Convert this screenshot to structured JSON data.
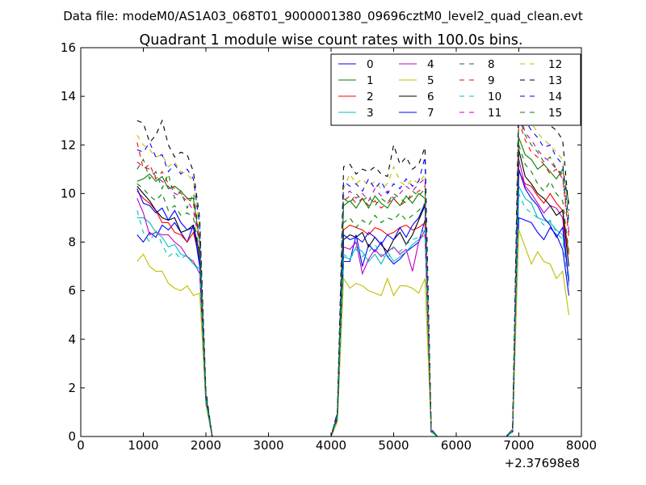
{
  "figure": {
    "suptitle": "Data file: modeM0/AS1A03_068T01_9000001380_09696cztM0_level2_quad_clean.evt",
    "x_offset_label": "+2.37698e8"
  },
  "chart_data": {
    "type": "line",
    "title": "Quadrant 1 module wise count rates with 100.0s bins.",
    "xlabel": "",
    "ylabel": "",
    "xlim": [
      0,
      8000
    ],
    "ylim": [
      0,
      16
    ],
    "x_offset": "+2.37698e8",
    "xticks": [
      0,
      1000,
      2000,
      3000,
      4000,
      5000,
      6000,
      7000,
      8000
    ],
    "yticks": [
      0,
      2,
      4,
      6,
      8,
      10,
      12,
      14,
      16
    ],
    "grid": false,
    "legend": {
      "location": "top-right",
      "columns": 4
    },
    "x": [
      900,
      1000,
      1100,
      1200,
      1300,
      1400,
      1500,
      1600,
      1700,
      1800,
      1900,
      2000,
      2100,
      2200,
      2300,
      2400,
      2500,
      2600,
      2700,
      2800,
      2900,
      3000,
      3100,
      3200,
      3300,
      3400,
      3500,
      3600,
      3700,
      3800,
      3900,
      4000,
      4100,
      4200,
      4300,
      4400,
      4500,
      4600,
      4700,
      4800,
      4900,
      5000,
      5100,
      5200,
      5300,
      5400,
      5500,
      5600,
      5700,
      5800,
      5900,
      6000,
      6100,
      6200,
      6300,
      6400,
      6500,
      6600,
      6700,
      6800,
      6900,
      7000,
      7100,
      7200,
      7300,
      7400,
      7500,
      7600,
      7700,
      7800
    ],
    "series": [
      {
        "name": "0",
        "color": "#0000ff",
        "dash": "solid",
        "values": [
          8.3,
          8.0,
          8.4,
          8.2,
          8.7,
          8.5,
          8.8,
          8.4,
          8.0,
          8.7,
          7.0,
          1.5,
          0,
          0,
          0,
          0,
          0,
          0,
          0,
          0,
          0,
          0,
          0,
          0,
          0,
          0,
          0,
          0,
          0,
          0,
          0,
          0,
          0.8,
          7.2,
          7.2,
          8.3,
          7.0,
          7.9,
          7.6,
          8.0,
          7.4,
          7.1,
          7.3,
          7.6,
          7.8,
          8.0,
          8.9,
          0.2,
          0,
          0,
          0,
          0,
          0,
          0,
          0,
          0,
          0,
          0,
          0,
          0,
          0.2,
          9.0,
          8.9,
          8.8,
          8.4,
          8.1,
          8.6,
          8.3,
          7.7,
          5.8
        ]
      },
      {
        "name": "1",
        "color": "#008000",
        "dash": "solid",
        "values": [
          10.5,
          10.6,
          10.8,
          10.5,
          10.7,
          10.2,
          10.3,
          10.1,
          9.8,
          9.8,
          8.0,
          1.7,
          0,
          0,
          0,
          0,
          0,
          0,
          0,
          0,
          0,
          0,
          0,
          0,
          0,
          0,
          0,
          0,
          0,
          0,
          0,
          0,
          0.9,
          9.5,
          9.7,
          9.4,
          9.8,
          9.4,
          9.9,
          9.6,
          9.4,
          9.8,
          9.5,
          9.9,
          9.6,
          10.0,
          9.8,
          0.3,
          0,
          0,
          0,
          0,
          0,
          0,
          0,
          0,
          0,
          0,
          0,
          0,
          0.3,
          12.3,
          11.6,
          11.4,
          11.0,
          11.2,
          10.9,
          10.6,
          11.0,
          9.6
        ]
      },
      {
        "name": "2",
        "color": "#ff0000",
        "dash": "solid",
        "values": [
          10.1,
          9.8,
          9.6,
          9.3,
          8.8,
          8.8,
          8.4,
          8.3,
          8.0,
          8.4,
          7.3,
          1.6,
          0,
          0,
          0,
          0,
          0,
          0,
          0,
          0,
          0,
          0,
          0,
          0,
          0,
          0,
          0,
          0,
          0,
          0,
          0,
          0,
          0.8,
          8.5,
          8.7,
          8.6,
          8.5,
          8.3,
          8.6,
          8.5,
          8.3,
          8.4,
          8.6,
          8.7,
          8.5,
          8.6,
          8.8,
          0.2,
          0,
          0,
          0,
          0,
          0,
          0,
          0,
          0,
          0,
          0,
          0,
          0,
          0.2,
          10.9,
          10.4,
          10.3,
          9.9,
          9.6,
          10.0,
          9.6,
          9.3,
          7.5
        ]
      },
      {
        "name": "3",
        "color": "#00bfbf",
        "dash": "solid",
        "values": [
          9.0,
          9.0,
          8.8,
          8.4,
          8.2,
          7.8,
          7.9,
          7.5,
          7.4,
          7.1,
          6.9,
          1.5,
          0,
          0,
          0,
          0,
          0,
          0,
          0,
          0,
          0,
          0,
          0,
          0,
          0,
          0,
          0,
          0,
          0,
          0,
          0,
          0,
          0.7,
          7.4,
          7.3,
          7.8,
          7.6,
          7.2,
          7.5,
          7.1,
          7.6,
          7.2,
          7.4,
          7.6,
          7.9,
          8.1,
          8.3,
          0.2,
          0,
          0,
          0,
          0,
          0,
          0,
          0,
          0,
          0,
          0,
          0,
          0,
          0.2,
          10.3,
          9.8,
          9.6,
          9.0,
          8.9,
          8.8,
          8.5,
          8.3,
          6.5
        ]
      },
      {
        "name": "4",
        "color": "#bf00bf",
        "dash": "solid",
        "values": [
          9.8,
          9.2,
          8.3,
          8.4,
          8.3,
          8.3,
          8.0,
          7.8,
          7.4,
          7.2,
          6.7,
          1.4,
          0,
          0,
          0,
          0,
          0,
          0,
          0,
          0,
          0,
          0,
          0,
          0,
          0,
          0,
          0,
          0,
          0,
          0,
          0,
          0,
          0.7,
          7.8,
          7.7,
          8.0,
          6.7,
          7.3,
          7.7,
          7.4,
          7.6,
          7.8,
          7.5,
          7.7,
          6.8,
          8.0,
          8.5,
          0.2,
          0,
          0,
          0,
          0,
          0,
          0,
          0,
          0,
          0,
          0,
          0,
          0,
          0.2,
          11.4,
          10.3,
          10.0,
          9.6,
          9.2,
          9.5,
          9.4,
          9.0,
          6.3
        ]
      },
      {
        "name": "5",
        "color": "#bfbf00",
        "dash": "solid",
        "values": [
          7.2,
          7.5,
          7.0,
          6.8,
          6.8,
          6.3,
          6.1,
          6.0,
          6.2,
          5.8,
          5.9,
          1.3,
          0,
          0,
          0,
          0,
          0,
          0,
          0,
          0,
          0,
          0,
          0,
          0,
          0,
          0,
          0,
          0,
          0,
          0,
          0,
          0,
          0.6,
          6.5,
          6.1,
          6.3,
          6.2,
          6.0,
          5.9,
          5.8,
          6.5,
          5.8,
          6.2,
          6.2,
          6.1,
          5.9,
          6.5,
          0.2,
          0,
          0,
          0,
          0,
          0,
          0,
          0,
          0,
          0,
          0,
          0,
          0,
          0.2,
          8.5,
          7.8,
          7.1,
          7.6,
          7.2,
          7.1,
          6.5,
          6.8,
          5.0
        ]
      },
      {
        "name": "6",
        "color": "#000000",
        "dash": "solid",
        "values": [
          10.3,
          10.0,
          9.7,
          9.3,
          9.0,
          8.9,
          9.0,
          8.4,
          8.5,
          8.7,
          7.5,
          1.6,
          0,
          0,
          0,
          0,
          0,
          0,
          0,
          0,
          0,
          0,
          0,
          0,
          0,
          0,
          0,
          0,
          0,
          0,
          0,
          0,
          0.8,
          8.1,
          8.3,
          8.2,
          8.4,
          7.8,
          8.2,
          7.9,
          7.6,
          8.1,
          8.4,
          7.9,
          8.3,
          8.9,
          9.5,
          0.2,
          0,
          0,
          0,
          0,
          0,
          0,
          0,
          0,
          0,
          0,
          0,
          0,
          0.2,
          11.8,
          10.7,
          10.4,
          10.0,
          9.8,
          9.5,
          9.1,
          9.3,
          7.0
        ]
      },
      {
        "name": "7",
        "color": "#0000ff",
        "dash": "solid",
        "values": [
          10.2,
          9.6,
          9.5,
          9.2,
          9.4,
          8.9,
          9.3,
          8.8,
          8.5,
          8.6,
          7.2,
          1.5,
          0,
          0,
          0,
          0,
          0,
          0,
          0,
          0,
          0,
          0,
          0,
          0,
          0,
          0,
          0,
          0,
          0,
          0,
          0,
          0,
          0.8,
          8.3,
          8.1,
          8.2,
          8.0,
          8.4,
          8.2,
          7.9,
          8.3,
          8.1,
          8.6,
          8.2,
          8.7,
          9.0,
          9.6,
          0.2,
          0,
          0,
          0,
          0,
          0,
          0,
          0,
          0,
          0,
          0,
          0,
          0,
          0.2,
          11.0,
          10.2,
          9.8,
          9.5,
          9.0,
          8.7,
          8.2,
          8.6,
          6.4
        ]
      },
      {
        "name": "8",
        "color": "#008000",
        "dash": "dashed",
        "values": [
          10.4,
          10.2,
          9.9,
          9.7,
          10.0,
          9.3,
          9.5,
          9.1,
          9.2,
          9.0,
          7.6,
          1.6,
          0,
          0,
          0,
          0,
          0,
          0,
          0,
          0,
          0,
          0,
          0,
          0,
          0,
          0,
          0,
          0,
          0,
          0,
          0,
          0,
          0.8,
          8.8,
          9.0,
          8.6,
          8.9,
          8.7,
          9.1,
          8.8,
          9.0,
          8.9,
          9.2,
          8.9,
          9.1,
          9.3,
          9.6,
          0.2,
          0,
          0,
          0,
          0,
          0,
          0,
          0,
          0,
          0,
          0,
          0,
          0,
          0.3,
          12.0,
          11.2,
          10.9,
          10.4,
          10.1,
          10.5,
          10.0,
          9.7,
          7.6
        ]
      },
      {
        "name": "9",
        "color": "#ff0000",
        "dash": "dashed",
        "values": [
          12.1,
          11.0,
          11.2,
          10.6,
          10.9,
          10.4,
          10.2,
          10.0,
          9.8,
          9.6,
          8.0,
          1.7,
          0,
          0,
          0,
          0,
          0,
          0,
          0,
          0,
          0,
          0,
          0,
          0,
          0,
          0,
          0,
          0,
          0,
          0,
          0,
          0,
          0.9,
          9.7,
          9.9,
          9.6,
          9.8,
          9.5,
          9.7,
          9.4,
          9.6,
          9.8,
          9.5,
          9.7,
          9.9,
          10.1,
          10.3,
          0.3,
          0,
          0,
          0,
          0,
          0,
          0,
          0,
          0,
          0,
          0,
          0,
          0,
          0.3,
          13.0,
          12.2,
          11.7,
          11.5,
          11.2,
          10.8,
          11.0,
          10.6,
          8.2
        ]
      },
      {
        "name": "10",
        "color": "#00bfbf",
        "dash": "dashed",
        "values": [
          9.3,
          8.4,
          8.0,
          8.5,
          7.9,
          7.4,
          7.6,
          7.3,
          7.5,
          7.1,
          6.8,
          1.4,
          0,
          0,
          0,
          0,
          0,
          0,
          0,
          0,
          0,
          0,
          0,
          0,
          0,
          0,
          0,
          0,
          0,
          0,
          0,
          0,
          0.7,
          7.5,
          7.3,
          7.7,
          7.4,
          7.6,
          7.9,
          7.5,
          7.3,
          7.8,
          7.6,
          7.9,
          8.1,
          8.2,
          8.6,
          0.2,
          0,
          0,
          0,
          0,
          0,
          0,
          0,
          0,
          0,
          0,
          0,
          0,
          0.2,
          10.0,
          9.4,
          9.2,
          9.0,
          8.7,
          8.9,
          8.4,
          8.1,
          6.2
        ]
      },
      {
        "name": "11",
        "color": "#bf00bf",
        "dash": "dashed",
        "values": [
          11.3,
          11.1,
          11.0,
          10.7,
          10.5,
          10.3,
          10.0,
          9.9,
          9.7,
          9.3,
          7.9,
          1.7,
          0,
          0,
          0,
          0,
          0,
          0,
          0,
          0,
          0,
          0,
          0,
          0,
          0,
          0,
          0,
          0,
          0,
          0,
          0,
          0,
          0.9,
          9.9,
          10.1,
          9.8,
          10.0,
          9.7,
          10.2,
          9.9,
          10.1,
          9.8,
          10.0,
          10.3,
          10.1,
          10.4,
          10.6,
          0.3,
          0,
          0,
          0,
          0,
          0,
          0,
          0,
          0,
          0,
          0,
          0,
          0,
          0.3,
          13.4,
          12.5,
          12.2,
          11.8,
          11.5,
          11.3,
          11.0,
          10.7,
          8.4
        ]
      },
      {
        "name": "12",
        "color": "#bfbf00",
        "dash": "dashed",
        "values": [
          12.4,
          12.0,
          11.8,
          11.5,
          11.6,
          11.1,
          11.3,
          10.9,
          10.8,
          10.5,
          8.5,
          1.8,
          0,
          0,
          0,
          0,
          0,
          0,
          0,
          0,
          0,
          0,
          0,
          0,
          0,
          0,
          0,
          0,
          0,
          0,
          0,
          0,
          1.0,
          10.2,
          10.8,
          10.4,
          10.6,
          10.3,
          10.5,
          10.2,
          10.4,
          11.1,
          10.5,
          10.3,
          10.6,
          10.4,
          10.8,
          0.3,
          0,
          0,
          0,
          0,
          0,
          0,
          0,
          0,
          0,
          0,
          0,
          0,
          0.3,
          14.0,
          13.1,
          12.9,
          12.5,
          12.2,
          12.0,
          11.7,
          11.4,
          8.9
        ]
      },
      {
        "name": "13",
        "color": "#000000",
        "dash": "dashed",
        "values": [
          13.0,
          12.9,
          12.1,
          12.4,
          13.0,
          12.0,
          11.5,
          11.7,
          11.6,
          10.9,
          9.0,
          1.9,
          0,
          0,
          0,
          0,
          0,
          0,
          0,
          0,
          0,
          0,
          0,
          0,
          0,
          0,
          0,
          0,
          0,
          0,
          0,
          0,
          1.0,
          11.1,
          11.2,
          10.8,
          11.0,
          10.9,
          11.1,
          10.8,
          10.7,
          12.0,
          11.2,
          11.5,
          11.0,
          11.2,
          11.9,
          0.3,
          0,
          0,
          0,
          0,
          0,
          0,
          0,
          0,
          0,
          0,
          0,
          0,
          0.3,
          14.3,
          13.5,
          13.5,
          13.0,
          13.1,
          12.8,
          12.6,
          12.2,
          9.3
        ]
      },
      {
        "name": "14",
        "color": "#0000ff",
        "dash": "dashed",
        "values": [
          11.8,
          11.7,
          12.1,
          11.5,
          11.6,
          10.9,
          11.2,
          10.8,
          11.0,
          10.6,
          8.7,
          1.8,
          0,
          0,
          0,
          0,
          0,
          0,
          0,
          0,
          0,
          0,
          0,
          0,
          0,
          0,
          0,
          0,
          0,
          0,
          0,
          0,
          1.0,
          10.5,
          10.3,
          10.4,
          10.1,
          10.6,
          10.2,
          10.5,
          10.0,
          10.4,
          10.2,
          10.6,
          10.3,
          10.5,
          11.5,
          0.3,
          0,
          0,
          0,
          0,
          0,
          0,
          0,
          0,
          0,
          0,
          0,
          0,
          0.3,
          13.9,
          13.0,
          12.6,
          12.3,
          11.9,
          12.0,
          11.5,
          11.2,
          8.8
        ]
      },
      {
        "name": "15",
        "color": "#008000",
        "dash": "dashed",
        "values": [
          11.0,
          11.4,
          10.6,
          10.9,
          10.2,
          10.8,
          9.8,
          10.1,
          9.4,
          10.0,
          8.2,
          1.7,
          0,
          0,
          0,
          0,
          0,
          0,
          0,
          0,
          0,
          0,
          0,
          0,
          0,
          0,
          0,
          0,
          0,
          0,
          0,
          0,
          0.9,
          9.8,
          9.6,
          10.0,
          9.7,
          9.9,
          9.5,
          9.8,
          9.6,
          10.0,
          9.8,
          9.6,
          10.1,
          9.9,
          10.2,
          0.3,
          0,
          0,
          0,
          0,
          0,
          0,
          0,
          0,
          0,
          0,
          0,
          0,
          0.3,
          13.2,
          12.4,
          12.0,
          11.7,
          11.3,
          11.5,
          11.0,
          10.8,
          8.6
        ]
      }
    ]
  }
}
